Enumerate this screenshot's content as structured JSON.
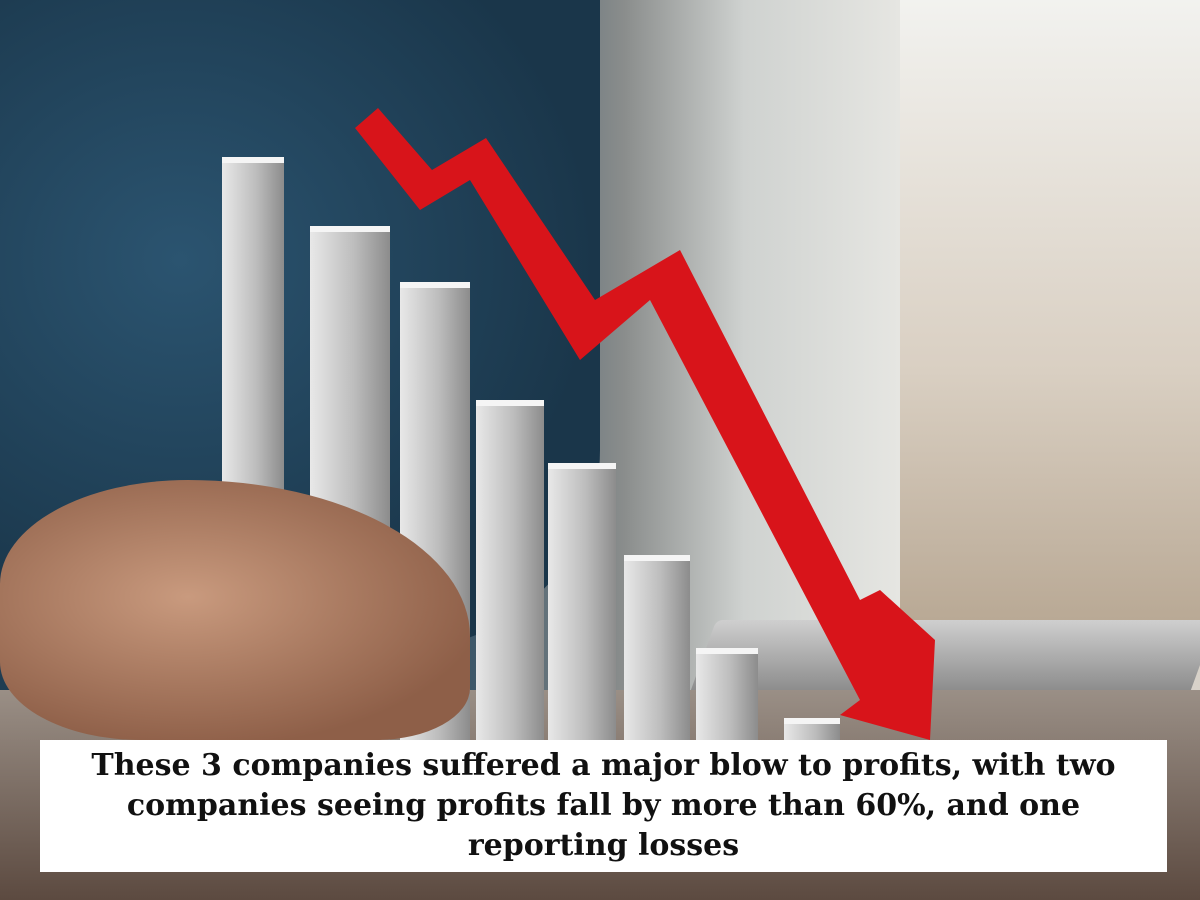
{
  "caption": "These 3 companies suffered a major blow to profits, with two companies seeing profits fall by more than 60%, and one reporting losses",
  "colors": {
    "arrow": "#d8141a",
    "caption_bg": "#ffffff",
    "caption_text": "#111111"
  }
}
